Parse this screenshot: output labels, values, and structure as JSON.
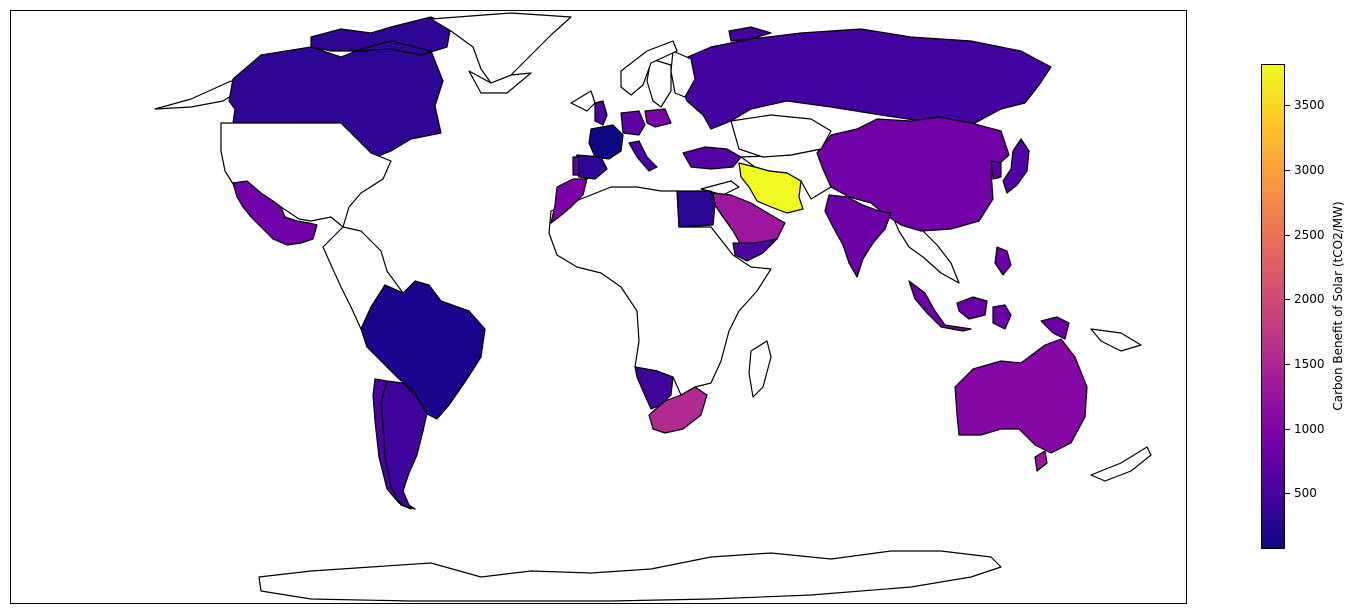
{
  "map": {
    "projection": "equirectangular",
    "unfilled_color": "#ffffff",
    "outline_color": "#000000"
  },
  "colorbar": {
    "label": "Carbon Benefit of Solar (tCO2/MW)",
    "colormap": "plasma",
    "range": [
      70,
      3820
    ],
    "ticks": [
      {
        "value": 500,
        "label": "500"
      },
      {
        "value": 1000,
        "label": "1000"
      },
      {
        "value": 1500,
        "label": "1500"
      },
      {
        "value": 2000,
        "label": "2000"
      },
      {
        "value": 2500,
        "label": "2500"
      },
      {
        "value": 3000,
        "label": "3000"
      },
      {
        "value": 3500,
        "label": "3500"
      }
    ]
  },
  "regions": [
    {
      "name": "Canada",
      "value": 350,
      "color": "#2f0596"
    },
    {
      "name": "Greenland",
      "value": null,
      "color": "#ffffff"
    },
    {
      "name": "United States",
      "value": null,
      "color": "#ffffff"
    },
    {
      "name": "Mexico",
      "value": 880,
      "color": "#7101a8"
    },
    {
      "name": "Brazil",
      "value": 220,
      "color": "#1a068e"
    },
    {
      "name": "Argentina",
      "value": 450,
      "color": "#3f049c"
    },
    {
      "name": "Chile",
      "value": 500,
      "color": "#4a02a0"
    },
    {
      "name": "Russia",
      "value": 480,
      "color": "#4203a0"
    },
    {
      "name": "China",
      "value": 850,
      "color": "#7201a8"
    },
    {
      "name": "India",
      "value": 840,
      "color": "#6e00a8"
    },
    {
      "name": "Iran",
      "value": 3750,
      "color": "#f0f921"
    },
    {
      "name": "Saudi Arabia",
      "value": 1250,
      "color": "#9c179e"
    },
    {
      "name": "Yemen",
      "value": 530,
      "color": "#4c02a1"
    },
    {
      "name": "Egypt",
      "value": 300,
      "color": "#2c0594"
    },
    {
      "name": "Morocco",
      "value": 900,
      "color": "#7a02a8"
    },
    {
      "name": "Namibia",
      "value": 470,
      "color": "#41049d"
    },
    {
      "name": "South Africa",
      "value": 1450,
      "color": "#b12a90"
    },
    {
      "name": "Australia",
      "value": 980,
      "color": "#8507a6"
    },
    {
      "name": "New Zealand",
      "value": 1200,
      "color": "#9a169f"
    },
    {
      "name": "Indonesia",
      "value": 830,
      "color": "#6c00a8"
    },
    {
      "name": "Philippines",
      "value": 800,
      "color": "#6a00a8"
    },
    {
      "name": "Japan",
      "value": 560,
      "color": "#5002a2"
    },
    {
      "name": "South Korea",
      "value": 640,
      "color": "#5b01a5"
    },
    {
      "name": "Turkey",
      "value": 560,
      "color": "#5302a3"
    },
    {
      "name": "France",
      "value": 80,
      "color": "#0d0887"
    },
    {
      "name": "Spain",
      "value": 330,
      "color": "#2f0596"
    },
    {
      "name": "Portugal",
      "value": 650,
      "color": "#5d01a6"
    },
    {
      "name": "United Kingdom",
      "value": 520,
      "color": "#4a02a0"
    },
    {
      "name": "Germany",
      "value": 650,
      "color": "#5c01a6"
    },
    {
      "name": "Poland",
      "value": 900,
      "color": "#7a02a8"
    },
    {
      "name": "Italy",
      "value": 500,
      "color": "#4a02a0"
    },
    {
      "name": "Finland",
      "value": null,
      "color": "#ffffff"
    },
    {
      "name": "Sweden",
      "value": null,
      "color": "#ffffff"
    },
    {
      "name": "Norway",
      "value": null,
      "color": "#ffffff"
    },
    {
      "name": "Kazakhstan",
      "value": null,
      "color": "#ffffff"
    },
    {
      "name": "Antarctica",
      "value": null,
      "color": "#ffffff"
    }
  ]
}
